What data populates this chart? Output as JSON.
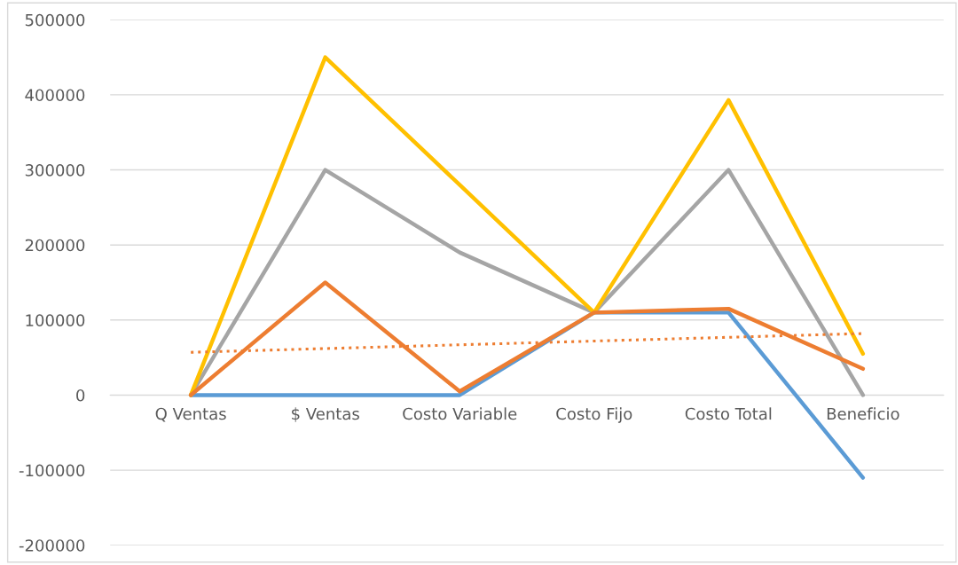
{
  "chart_data": {
    "type": "line",
    "categories": [
      "Q Ventas",
      "$ Ventas",
      "Costo Variable",
      "Costo Fijo",
      "Costo Total",
      "Beneficio"
    ],
    "series": [
      {
        "color": "#5b9bd5",
        "values": [
          0,
          0,
          0,
          110000,
          110000,
          -110000
        ]
      },
      {
        "color": "#a5a5a5",
        "values": [
          0,
          300000,
          190000,
          110000,
          300000,
          0
        ]
      },
      {
        "color": "#ffc000",
        "values": [
          0,
          450000,
          280000,
          110000,
          393000,
          55000
        ]
      },
      {
        "color": "#ed7d31",
        "values": [
          0,
          150000,
          5000,
          110000,
          115000,
          35000
        ]
      },
      {
        "color": "#ed7d31",
        "line_style": "dotted",
        "values": [
          57000,
          62000,
          67000,
          72000,
          77000,
          82000
        ]
      }
    ],
    "ylim": [
      -200000,
      500000
    ],
    "yticks": [
      -200000,
      -100000,
      0,
      100000,
      200000,
      300000,
      400000,
      500000
    ],
    "grid": "y",
    "legend": false,
    "marker": "none",
    "line_style": "solid"
  }
}
